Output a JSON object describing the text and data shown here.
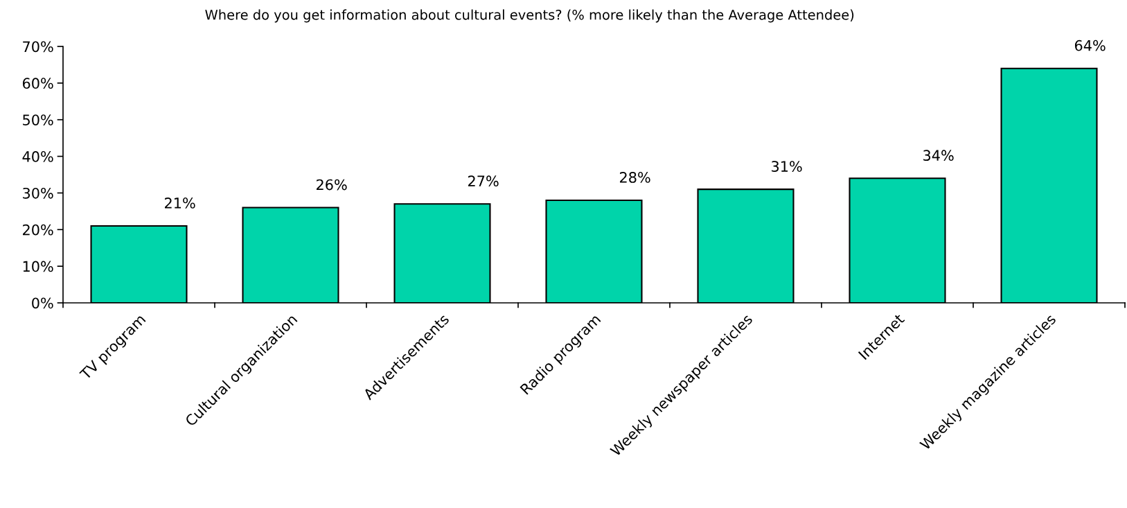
{
  "chart_data": {
    "type": "bar",
    "title": "Where do you get information about cultural events? (% more likely than the Average Attendee)",
    "categories": [
      "TV program",
      "Cultural organization",
      "Advertisements",
      "Radio program",
      "Weekly newspaper articles",
      "Internet",
      "Weekly magazine articles"
    ],
    "values": [
      21,
      26,
      27,
      28,
      31,
      34,
      64
    ],
    "value_labels": [
      "21%",
      "26%",
      "27%",
      "28%",
      "31%",
      "34%",
      "64%"
    ],
    "color": "#00d4aa",
    "ylim": [
      0,
      70
    ],
    "yticks": [
      {
        "value": 0,
        "label": "0%"
      },
      {
        "value": 10,
        "label": "10%"
      },
      {
        "value": 20,
        "label": "20%"
      },
      {
        "value": 30,
        "label": "30%"
      },
      {
        "value": 40,
        "label": "40%"
      },
      {
        "value": 50,
        "label": "50%"
      },
      {
        "value": 60,
        "label": "60%"
      },
      {
        "value": 70,
        "label": "70%"
      }
    ],
    "grid": false,
    "legend": false
  }
}
